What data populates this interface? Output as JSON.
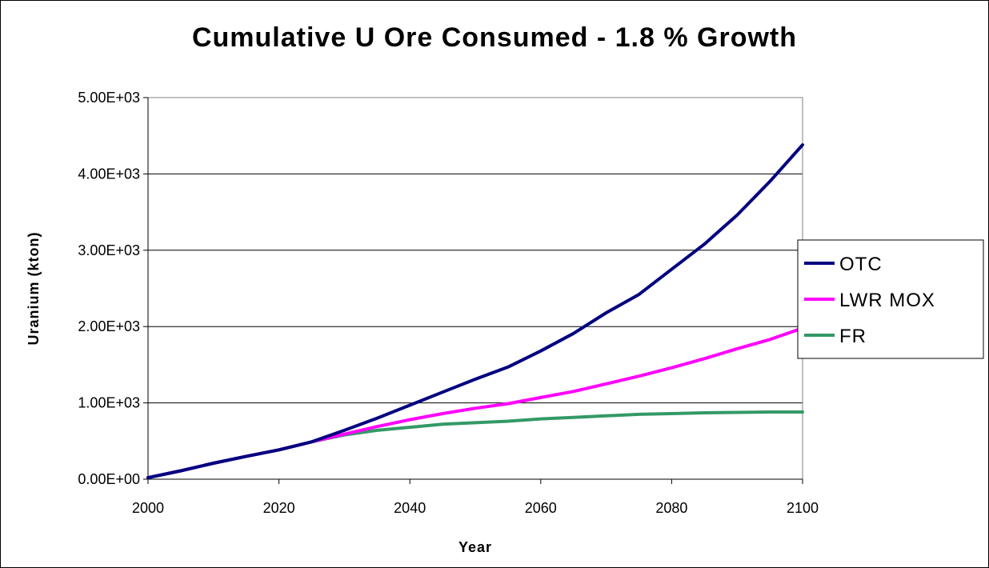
{
  "chart_data": {
    "type": "line",
    "title": "Cumulative U Ore Consumed - 1.8 % Growth",
    "xlabel": "Year",
    "ylabel": "Uranium (kton)",
    "xlim": [
      2000,
      2100
    ],
    "ylim": [
      0,
      5000
    ],
    "xticks": [
      2000,
      2020,
      2040,
      2060,
      2080,
      2100
    ],
    "xtick_labels": [
      "2000",
      "2020",
      "2040",
      "2060",
      "2080",
      "2100"
    ],
    "yticks": [
      0,
      1000,
      2000,
      3000,
      4000,
      5000
    ],
    "ytick_labels": [
      "0.00E+00",
      "1.00E+03",
      "2.00E+03",
      "3.00E+03",
      "4.00E+03",
      "5.00E+03"
    ],
    "grid": "horizontal",
    "legend_position": "right",
    "x": [
      2000,
      2005,
      2010,
      2015,
      2020,
      2025,
      2030,
      2035,
      2040,
      2045,
      2050,
      2055,
      2060,
      2065,
      2070,
      2075,
      2080,
      2085,
      2090,
      2095,
      2100
    ],
    "series": [
      {
        "name": "OTC",
        "color": "#000080",
        "values": [
          20,
          110,
          210,
          300,
          385,
          490,
          640,
          800,
          970,
          1140,
          1310,
          1470,
          1680,
          1910,
          2180,
          2420,
          2750,
          3080,
          3460,
          3900,
          4380
        ]
      },
      {
        "name": "LWR MOX",
        "color": "#ff00ff",
        "values": [
          20,
          110,
          210,
          300,
          385,
          490,
          590,
          690,
          780,
          860,
          930,
          990,
          1070,
          1150,
          1250,
          1350,
          1460,
          1580,
          1710,
          1830,
          1980
        ]
      },
      {
        "name": "FR",
        "color": "#339966",
        "values": [
          20,
          110,
          210,
          300,
          385,
          490,
          580,
          640,
          680,
          720,
          740,
          760,
          790,
          810,
          830,
          850,
          860,
          870,
          875,
          880,
          880
        ]
      }
    ]
  }
}
